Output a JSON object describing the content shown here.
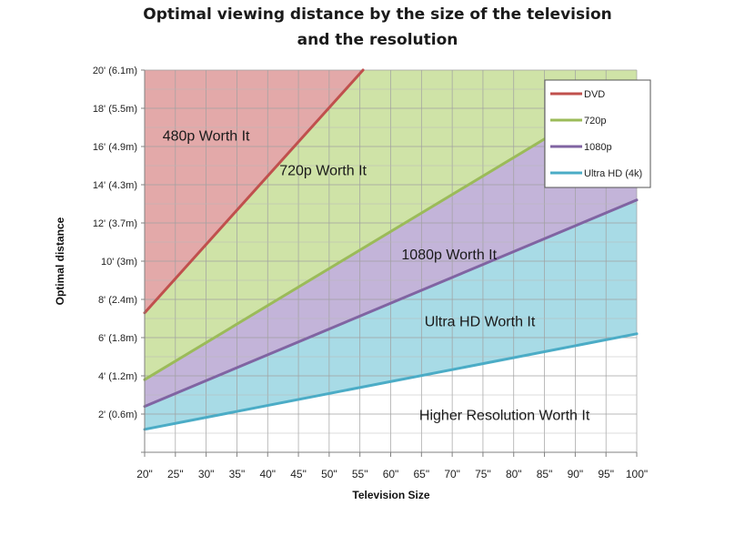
{
  "title_line1": "Optimal viewing distance by the size of the television",
  "title_line2": "and the resolution",
  "chart_data": {
    "type": "area",
    "title": "Optimal viewing distance by the size of the television and the resolution",
    "xlabel": "Television Size",
    "ylabel": "Optimal distance",
    "xlim": [
      20,
      100
    ],
    "ylim": [
      0,
      20
    ],
    "grid": true,
    "legend_position": "top-right",
    "x_ticks": [
      20,
      25,
      30,
      35,
      40,
      45,
      50,
      55,
      60,
      65,
      70,
      75,
      80,
      85,
      90,
      95,
      100
    ],
    "x_tick_labels": [
      "20\"",
      "25\"",
      "30\"",
      "35\"",
      "40\"",
      "45\"",
      "50\"",
      "55\"",
      "60\"",
      "65\"",
      "70\"",
      "75\"",
      "80\"",
      "85\"",
      "90\"",
      "95\"",
      "100\""
    ],
    "y_ticks": [
      2,
      4,
      6,
      8,
      10,
      12,
      14,
      16,
      18,
      20
    ],
    "y_tick_labels": [
      "2' (0.6m)",
      "4' (1.2m)",
      "6' (1.8m)",
      "8' (2.4m)",
      "10' (3m)",
      "12' (3.7m)",
      "14' (4.3m)",
      "16' (4.9m)",
      "18' (5.5m)",
      "20' (6.1m)"
    ],
    "series": [
      {
        "name": "DVD",
        "color": "#c0504d",
        "x": [
          20,
          55.5
        ],
        "y": [
          7.3,
          20
        ]
      },
      {
        "name": "720p",
        "color": "#9bbb59",
        "x": [
          20,
          100
        ],
        "y": [
          3.8,
          19.3
        ]
      },
      {
        "name": "1080p",
        "color": "#8064a2",
        "x": [
          20,
          100
        ],
        "y": [
          2.4,
          13.2
        ]
      },
      {
        "name": "Ultra HD (4k)",
        "color": "#4bacc6",
        "x": [
          20,
          100
        ],
        "y": [
          1.2,
          6.2
        ]
      }
    ],
    "region_fills": {
      "480p": "#e3a9a9",
      "720p": "#cfe3a7",
      "1080p": "#c3b4d9",
      "uhd": "#a8dbe6"
    },
    "annotations": [
      {
        "text": "480p Worth It",
        "x": 30,
        "y": 16.3
      },
      {
        "text": "720p Worth It",
        "x": 49,
        "y": 14.5
      },
      {
        "text": "1080p Worth It",
        "x": 69.5,
        "y": 10.1
      },
      {
        "text": "Ultra HD Worth It",
        "x": 74.5,
        "y": 6.6
      },
      {
        "text": "Higher Resolution Worth It",
        "x": 78.5,
        "y": 1.7
      }
    ]
  }
}
